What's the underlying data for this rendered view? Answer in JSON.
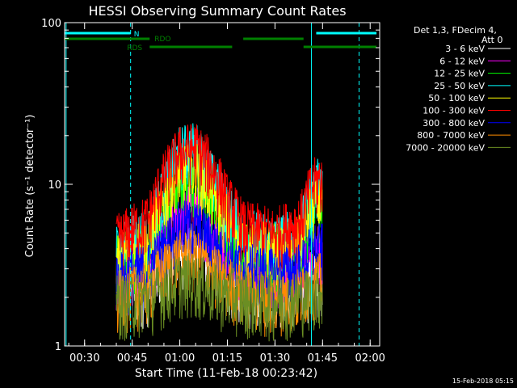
{
  "chart_data": {
    "type": "line",
    "title": "HESSI Observing Summary Count Rates",
    "xlabel": "Start Time (11-Feb-18 00:23:42)",
    "ylabel": "Count Rate (s⁻¹ detector⁻¹)",
    "y_scale": "log",
    "xlim": [
      "00:23:42",
      "02:03:00"
    ],
    "ylim": [
      1,
      100
    ],
    "x_ticks": [
      "00:30",
      "00:45",
      "01:00",
      "01:15",
      "01:30",
      "01:45",
      "02:00"
    ],
    "y_ticks": [
      "1",
      "10",
      "100"
    ],
    "legend_header": [
      "Det 1,3, FDecim 4,",
      "Att 0"
    ],
    "legend_position": "right",
    "series": [
      {
        "name": "3 - 6 keV",
        "color": "#ffffff",
        "x": [
          "00:40",
          "00:50",
          "00:55",
          "01:00",
          "01:05",
          "01:10",
          "01:15",
          "01:20",
          "01:30",
          "01:38",
          "01:42",
          "01:45"
        ],
        "y": [
          2.3,
          2.3,
          3.2,
          4.0,
          4.0,
          3.5,
          2.6,
          2.3,
          2.3,
          2.3,
          2.6,
          2.6
        ]
      },
      {
        "name": "6 - 12 keV",
        "color": "#ff00ff",
        "x": [
          "00:40",
          "00:50",
          "00:55",
          "01:00",
          "01:05",
          "01:10",
          "01:15",
          "01:20",
          "01:30",
          "01:38",
          "01:42",
          "01:45"
        ],
        "y": [
          3.0,
          3.2,
          5.0,
          7.0,
          7.0,
          5.5,
          4.0,
          3.2,
          3.0,
          3.0,
          4.0,
          4.0
        ]
      },
      {
        "name": "12 - 25 keV",
        "color": "#00ff00",
        "x": [
          "00:40",
          "00:50",
          "00:55",
          "01:00",
          "01:05",
          "01:10",
          "01:15",
          "01:20",
          "01:30",
          "01:38",
          "01:42",
          "01:45"
        ],
        "y": [
          3.5,
          4.0,
          7.0,
          11.0,
          11.0,
          8.0,
          5.5,
          4.0,
          3.5,
          4.0,
          6.5,
          7.0
        ]
      },
      {
        "name": "25 - 50 keV",
        "color": "#00ffff",
        "x": [
          "00:40",
          "00:50",
          "00:55",
          "01:00",
          "01:05",
          "01:10",
          "01:15",
          "01:20",
          "01:30",
          "01:38",
          "01:42",
          "01:45"
        ],
        "y": [
          4.0,
          5.0,
          9.0,
          16.0,
          17.0,
          11.0,
          7.0,
          5.0,
          4.5,
          5.0,
          9.0,
          11.0
        ]
      },
      {
        "name": "50 - 100 keV",
        "color": "#ffff00",
        "x": [
          "00:40",
          "00:50",
          "00:55",
          "01:00",
          "01:05",
          "01:10",
          "01:15",
          "01:20",
          "01:30",
          "01:38",
          "01:42",
          "01:45"
        ],
        "y": [
          3.5,
          4.5,
          8.0,
          12.0,
          13.0,
          9.0,
          6.0,
          4.5,
          4.0,
          4.5,
          7.5,
          8.0
        ]
      },
      {
        "name": "100 - 300 keV",
        "color": "#ff0000",
        "x": [
          "00:40",
          "00:50",
          "00:55",
          "01:00",
          "01:05",
          "01:10",
          "01:15",
          "01:20",
          "01:30",
          "01:38",
          "01:42",
          "01:45"
        ],
        "y": [
          4.5,
          6.0,
          11.0,
          16.0,
          17.0,
          13.0,
          8.0,
          5.5,
          5.0,
          6.0,
          10.0,
          11.0
        ]
      },
      {
        "name": "300 - 800 keV",
        "color": "#0000ff",
        "x": [
          "00:40",
          "00:50",
          "00:55",
          "01:00",
          "01:05",
          "01:10",
          "01:15",
          "01:20",
          "01:30",
          "01:38",
          "01:42",
          "01:45"
        ],
        "y": [
          2.6,
          3.0,
          4.0,
          5.5,
          5.5,
          4.5,
          3.5,
          3.0,
          2.8,
          3.0,
          4.0,
          4.0
        ]
      },
      {
        "name": "800 - 7000 keV",
        "color": "#ff8c00",
        "x": [
          "00:40",
          "00:50",
          "00:55",
          "01:00",
          "01:05",
          "01:10",
          "01:15",
          "01:20",
          "01:30",
          "01:38",
          "01:42",
          "01:45"
        ],
        "y": [
          2.0,
          2.3,
          3.0,
          3.6,
          3.6,
          3.0,
          2.5,
          2.2,
          2.0,
          2.1,
          2.6,
          2.6
        ]
      },
      {
        "name": "7000 - 20000 keV",
        "color": "#6b8e23",
        "x": [
          "00:40",
          "00:50",
          "00:55",
          "01:00",
          "01:05",
          "01:10",
          "01:15",
          "01:20",
          "01:30",
          "01:38",
          "01:42",
          "01:45"
        ],
        "y": [
          1.9,
          2.0,
          2.3,
          2.6,
          2.6,
          2.3,
          2.1,
          2.0,
          1.9,
          2.0,
          2.2,
          2.2
        ]
      }
    ],
    "flags": [
      {
        "label": "N",
        "color": "#00ffff",
        "segments": [
          [
            "00:23:42",
            "00:44:30"
          ],
          [
            "01:43:00",
            "02:02:00"
          ]
        ]
      },
      {
        "label": "RDO",
        "color": "#008000",
        "segments": [
          [
            "00:23:42",
            "00:50:30"
          ],
          [
            "01:20:00",
            "01:39:00"
          ]
        ]
      },
      {
        "label": "RDS",
        "color": "#008000",
        "segments": [
          [
            "00:50:30",
            "01:16:30"
          ],
          [
            "01:39:00",
            "02:02:00"
          ]
        ]
      }
    ],
    "markers": [
      {
        "time": "00:24:10",
        "color": "#00ffff",
        "style": "solid"
      },
      {
        "time": "00:44:30",
        "color": "#00ffff",
        "style": "dashed"
      },
      {
        "time": "01:41:30",
        "color": "#00ffff",
        "style": "solid"
      },
      {
        "time": "01:56:30",
        "color": "#00ffff",
        "style": "dashed"
      }
    ]
  },
  "footer": {
    "timestamp": "15-Feb-2018 05:15"
  }
}
